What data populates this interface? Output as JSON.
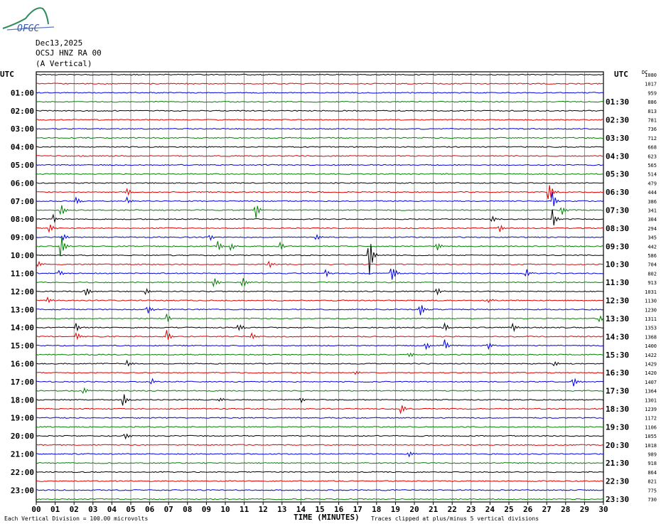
{
  "header": {
    "logo_text": "OFGC",
    "date": "Dec13,2025",
    "station": "OCSJ HNZ RA 00",
    "component": "(A Vertical)"
  },
  "axis": {
    "left_title": "UTC",
    "right_title": "UTC",
    "dc_title": "DC",
    "x_title": "TIME (MINUTES)",
    "footer_left": "Each Vertical Division =  100.00 microvolts",
    "footer_right": "Traces clipped at plus/minus 5 vertical divisions"
  },
  "chart_data": {
    "type": "line",
    "title": "Dec13,2025",
    "xlabel": "TIME (MINUTES)",
    "ylabel": "UTC",
    "xlim": [
      0,
      30
    ],
    "x_ticks": [
      "00",
      "01",
      "02",
      "03",
      "04",
      "05",
      "06",
      "07",
      "08",
      "09",
      "10",
      "11",
      "12",
      "13",
      "14",
      "15",
      "16",
      "17",
      "18",
      "19",
      "20",
      "21",
      "22",
      "23",
      "24",
      "25",
      "26",
      "27",
      "28",
      "29",
      "30"
    ],
    "left_hour_labels": [
      "01:00",
      "02:00",
      "03:00",
      "04:00",
      "05:00",
      "06:00",
      "07:00",
      "08:00",
      "09:00",
      "10:00",
      "11:00",
      "12:00",
      "13:00",
      "14:00",
      "15:00",
      "16:00",
      "17:00",
      "18:00",
      "19:00",
      "20:00",
      "21:00",
      "22:00",
      "23:00"
    ],
    "right_hour_labels": [
      "01:30",
      "02:30",
      "03:30",
      "04:30",
      "05:30",
      "06:30",
      "07:30",
      "08:30",
      "09:30",
      "10:30",
      "11:30",
      "12:30",
      "13:30",
      "14:30",
      "15:30",
      "16:30",
      "17:30",
      "18:30",
      "19:30",
      "20:30",
      "21:30",
      "22:30",
      "23:30"
    ],
    "dc_offsets": [
      1080,
      1017,
      959,
      886,
      813,
      781,
      736,
      712,
      668,
      623,
      565,
      514,
      479,
      444,
      386,
      341,
      304,
      294,
      345,
      442,
      586,
      704,
      802,
      913,
      1031,
      1130,
      1230,
      1311,
      1353,
      1368,
      1400,
      1422,
      1429,
      1420,
      1407,
      1364,
      1301,
      1239,
      1172,
      1106,
      1055,
      1018,
      989,
      918,
      864,
      821,
      775,
      730
    ],
    "trace_colors": [
      "#000000",
      "#e00000",
      "#0000e0",
      "#008000"
    ],
    "grid": true,
    "events": [
      {
        "trace": 13,
        "minute": 27.1,
        "amp": 22
      },
      {
        "trace": 13,
        "minute": 4.8,
        "amp": 7
      },
      {
        "trace": 14,
        "minute": 27.3,
        "amp": 14
      },
      {
        "trace": 14,
        "minute": 2.1,
        "amp": 6
      },
      {
        "trace": 14,
        "minute": 4.8,
        "amp": 5
      },
      {
        "trace": 15,
        "minute": 1.3,
        "amp": 12
      },
      {
        "trace": 15,
        "minute": 11.6,
        "amp": 14
      },
      {
        "trace": 15,
        "minute": 27.8,
        "amp": 8
      },
      {
        "trace": 16,
        "minute": 0.9,
        "amp": 6
      },
      {
        "trace": 16,
        "minute": 24.1,
        "amp": 6
      },
      {
        "trace": 16,
        "minute": 27.3,
        "amp": 14
      },
      {
        "trace": 17,
        "minute": 0.7,
        "amp": 8
      },
      {
        "trace": 17,
        "minute": 24.5,
        "amp": 6
      },
      {
        "trace": 18,
        "minute": 1.4,
        "amp": 6
      },
      {
        "trace": 18,
        "minute": 9.2,
        "amp": 5
      },
      {
        "trace": 18,
        "minute": 14.8,
        "amp": 6
      },
      {
        "trace": 19,
        "minute": 1.3,
        "amp": 22
      },
      {
        "trace": 19,
        "minute": 9.6,
        "amp": 8
      },
      {
        "trace": 19,
        "minute": 10.3,
        "amp": 7
      },
      {
        "trace": 19,
        "minute": 12.9,
        "amp": 7
      },
      {
        "trace": 19,
        "minute": 21.2,
        "amp": 8
      },
      {
        "trace": 20,
        "minute": 17.6,
        "amp": 38
      },
      {
        "trace": 21,
        "minute": 0.1,
        "amp": 5
      },
      {
        "trace": 21,
        "minute": 12.3,
        "amp": 6
      },
      {
        "trace": 22,
        "minute": 1.2,
        "amp": 6
      },
      {
        "trace": 22,
        "minute": 15.3,
        "amp": 7
      },
      {
        "trace": 22,
        "minute": 18.8,
        "amp": 18
      },
      {
        "trace": 22,
        "minute": 25.9,
        "amp": 7
      },
      {
        "trace": 23,
        "minute": 9.4,
        "amp": 8
      },
      {
        "trace": 23,
        "minute": 10.9,
        "amp": 9
      },
      {
        "trace": 24,
        "minute": 2.6,
        "amp": 9
      },
      {
        "trace": 24,
        "minute": 5.8,
        "amp": 6
      },
      {
        "trace": 24,
        "minute": 21.2,
        "amp": 6
      },
      {
        "trace": 25,
        "minute": 0.6,
        "amp": 5
      },
      {
        "trace": 25,
        "minute": 23.9,
        "amp": 5
      },
      {
        "trace": 26,
        "minute": 5.9,
        "amp": 7
      },
      {
        "trace": 26,
        "minute": 20.3,
        "amp": 12
      },
      {
        "trace": 27,
        "minute": 6.9,
        "amp": 8
      },
      {
        "trace": 27,
        "minute": 29.8,
        "amp": 6
      },
      {
        "trace": 28,
        "minute": 2.1,
        "amp": 7
      },
      {
        "trace": 28,
        "minute": 10.7,
        "amp": 8
      },
      {
        "trace": 28,
        "minute": 21.6,
        "amp": 7
      },
      {
        "trace": 28,
        "minute": 25.2,
        "amp": 8
      },
      {
        "trace": 29,
        "minute": 2.1,
        "amp": 8
      },
      {
        "trace": 29,
        "minute": 6.9,
        "amp": 10
      },
      {
        "trace": 29,
        "minute": 11.4,
        "amp": 5
      },
      {
        "trace": 30,
        "minute": 20.6,
        "amp": 8
      },
      {
        "trace": 30,
        "minute": 21.6,
        "amp": 10
      },
      {
        "trace": 30,
        "minute": 23.9,
        "amp": 6
      },
      {
        "trace": 31,
        "minute": 19.7,
        "amp": 6
      },
      {
        "trace": 32,
        "minute": 4.8,
        "amp": 6
      },
      {
        "trace": 32,
        "minute": 27.4,
        "amp": 5
      },
      {
        "trace": 33,
        "minute": 16.9,
        "amp": 5
      },
      {
        "trace": 34,
        "minute": 6.1,
        "amp": 5
      },
      {
        "trace": 34,
        "minute": 28.4,
        "amp": 9
      },
      {
        "trace": 35,
        "minute": 2.5,
        "amp": 6
      },
      {
        "trace": 36,
        "minute": 4.6,
        "amp": 12
      },
      {
        "trace": 36,
        "minute": 9.7,
        "amp": 5
      },
      {
        "trace": 36,
        "minute": 14.0,
        "amp": 5
      },
      {
        "trace": 37,
        "minute": 19.3,
        "amp": 9
      },
      {
        "trace": 40,
        "minute": 4.7,
        "amp": 6
      },
      {
        "trace": 42,
        "minute": 19.7,
        "amp": 5
      }
    ]
  }
}
